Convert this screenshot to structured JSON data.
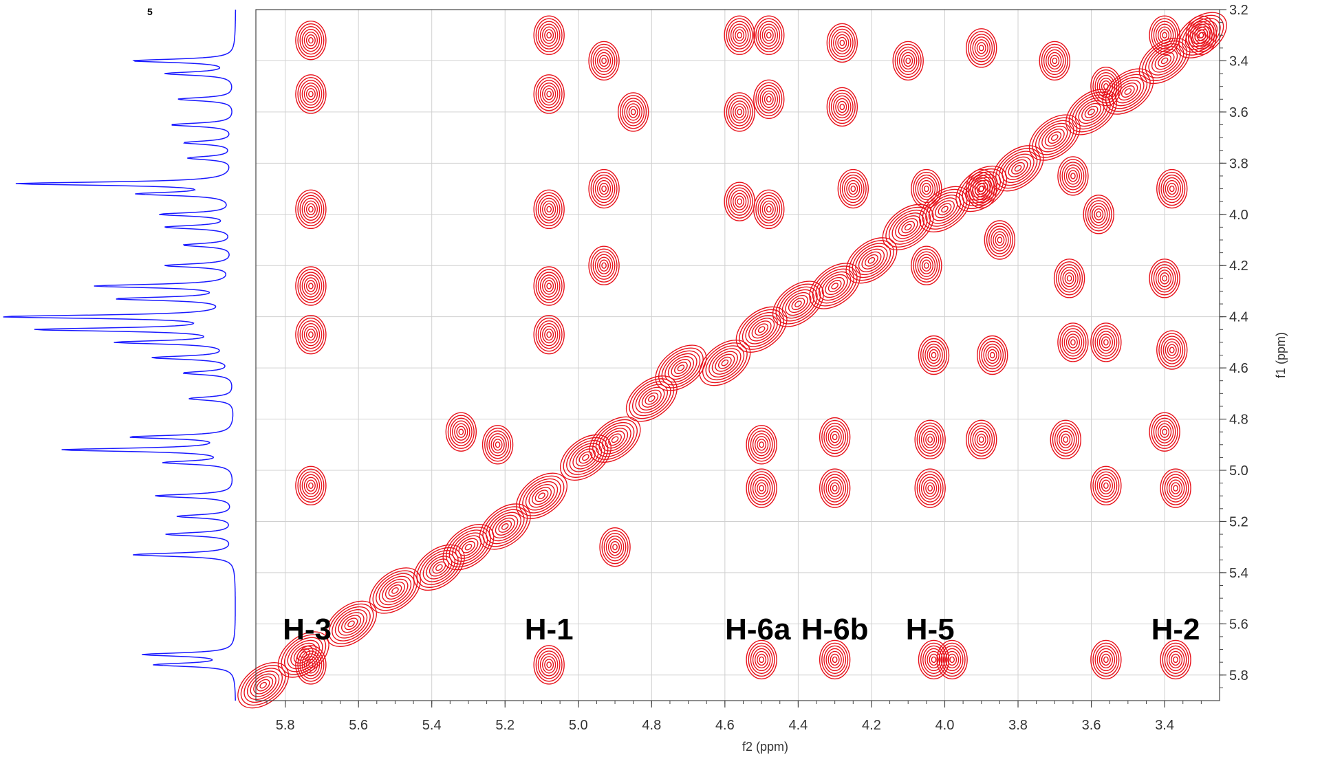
{
  "chart_data": {
    "type": "heatmap",
    "subtype": "2D NMR COSY contour plot with 1D projection",
    "panel_label": "5",
    "xlabel": "f2 (ppm)",
    "ylabel": "f1 (ppm)",
    "x_reversed": true,
    "y_reversed": true,
    "xlim": [
      5.88,
      3.25
    ],
    "ylim": [
      3.2,
      5.9
    ],
    "x_ticks": [
      "5.8",
      "5.6",
      "5.4",
      "5.2",
      "5.0",
      "4.8",
      "4.6",
      "4.4",
      "4.2",
      "4.0",
      "3.8",
      "3.6",
      "3.4"
    ],
    "y_ticks": [
      "3.2",
      "3.4",
      "3.6",
      "3.8",
      "4.0",
      "4.2",
      "4.4",
      "4.6",
      "4.8",
      "5.0",
      "5.2",
      "5.4",
      "5.6",
      "5.8"
    ],
    "grid": true,
    "colors": {
      "contour": "#e8121b",
      "projection": "#1a1aff",
      "grid": "#d0d0d0",
      "axis": "#444444"
    },
    "peak_labels": [
      {
        "text": "H-3",
        "ppm": 5.74
      },
      {
        "text": "H-1",
        "ppm": 5.08
      },
      {
        "text": "H-6a",
        "ppm": 4.51
      },
      {
        "text": "H-6b",
        "ppm": 4.3
      },
      {
        "text": "H-5",
        "ppm": 4.04
      },
      {
        "text": "H-2",
        "ppm": 3.37
      }
    ],
    "diagonal": [
      {
        "x": 5.86,
        "y": 5.84
      },
      {
        "x": 5.75,
        "y": 5.72
      },
      {
        "x": 5.62,
        "y": 5.6
      },
      {
        "x": 5.5,
        "y": 5.47
      },
      {
        "x": 5.38,
        "y": 5.38
      },
      {
        "x": 5.3,
        "y": 5.3
      },
      {
        "x": 5.2,
        "y": 5.22
      },
      {
        "x": 5.1,
        "y": 5.1
      },
      {
        "x": 4.98,
        "y": 4.95
      },
      {
        "x": 4.9,
        "y": 4.88
      },
      {
        "x": 4.8,
        "y": 4.72
      },
      {
        "x": 4.72,
        "y": 4.6
      },
      {
        "x": 4.6,
        "y": 4.58
      },
      {
        "x": 4.5,
        "y": 4.45
      },
      {
        "x": 4.4,
        "y": 4.35
      },
      {
        "x": 4.3,
        "y": 4.28
      },
      {
        "x": 4.2,
        "y": 4.18
      },
      {
        "x": 4.1,
        "y": 4.05
      },
      {
        "x": 4.0,
        "y": 3.98
      },
      {
        "x": 3.9,
        "y": 3.9
      },
      {
        "x": 3.8,
        "y": 3.82
      },
      {
        "x": 3.7,
        "y": 3.7
      },
      {
        "x": 3.6,
        "y": 3.6
      },
      {
        "x": 3.5,
        "y": 3.52
      },
      {
        "x": 3.4,
        "y": 3.4
      },
      {
        "x": 3.3,
        "y": 3.3
      }
    ],
    "cross_peaks": [
      {
        "x": 5.73,
        "y": 3.32
      },
      {
        "x": 5.73,
        "y": 3.53
      },
      {
        "x": 5.73,
        "y": 3.98
      },
      {
        "x": 5.73,
        "y": 4.28
      },
      {
        "x": 5.73,
        "y": 4.47
      },
      {
        "x": 5.73,
        "y": 5.06
      },
      {
        "x": 5.73,
        "y": 5.76
      },
      {
        "x": 5.08,
        "y": 3.3
      },
      {
        "x": 5.08,
        "y": 3.53
      },
      {
        "x": 5.08,
        "y": 3.98
      },
      {
        "x": 5.08,
        "y": 4.28
      },
      {
        "x": 5.08,
        "y": 4.47
      },
      {
        "x": 5.08,
        "y": 5.76
      },
      {
        "x": 4.93,
        "y": 3.4
      },
      {
        "x": 4.93,
        "y": 3.9
      },
      {
        "x": 4.93,
        "y": 4.2
      },
      {
        "x": 4.9,
        "y": 5.3
      },
      {
        "x": 4.85,
        "y": 3.6
      },
      {
        "x": 5.32,
        "y": 4.85
      },
      {
        "x": 5.22,
        "y": 4.9
      },
      {
        "x": 4.56,
        "y": 3.3
      },
      {
        "x": 4.56,
        "y": 3.6
      },
      {
        "x": 4.56,
        "y": 3.95
      },
      {
        "x": 4.48,
        "y": 3.3
      },
      {
        "x": 4.48,
        "y": 3.55
      },
      {
        "x": 4.48,
        "y": 3.98
      },
      {
        "x": 4.5,
        "y": 4.9
      },
      {
        "x": 4.5,
        "y": 5.07
      },
      {
        "x": 4.5,
        "y": 5.74
      },
      {
        "x": 4.28,
        "y": 3.33
      },
      {
        "x": 4.28,
        "y": 3.58
      },
      {
        "x": 4.25,
        "y": 3.9
      },
      {
        "x": 4.3,
        "y": 4.87
      },
      {
        "x": 4.3,
        "y": 5.07
      },
      {
        "x": 4.3,
        "y": 5.74
      },
      {
        "x": 4.1,
        "y": 3.4
      },
      {
        "x": 4.05,
        "y": 3.9
      },
      {
        "x": 4.05,
        "y": 4.2
      },
      {
        "x": 4.03,
        "y": 4.55
      },
      {
        "x": 4.04,
        "y": 4.88
      },
      {
        "x": 4.04,
        "y": 5.07
      },
      {
        "x": 4.03,
        "y": 5.74
      },
      {
        "x": 3.98,
        "y": 5.74
      },
      {
        "x": 3.9,
        "y": 3.35
      },
      {
        "x": 3.9,
        "y": 3.9
      },
      {
        "x": 3.87,
        "y": 4.55
      },
      {
        "x": 3.9,
        "y": 4.88
      },
      {
        "x": 3.85,
        "y": 4.1
      },
      {
        "x": 3.7,
        "y": 3.4
      },
      {
        "x": 3.65,
        "y": 3.85
      },
      {
        "x": 3.66,
        "y": 4.25
      },
      {
        "x": 3.67,
        "y": 4.88
      },
      {
        "x": 3.65,
        "y": 4.5
      },
      {
        "x": 3.56,
        "y": 3.5
      },
      {
        "x": 3.58,
        "y": 4.0
      },
      {
        "x": 3.56,
        "y": 4.5
      },
      {
        "x": 3.56,
        "y": 5.06
      },
      {
        "x": 3.56,
        "y": 5.74
      },
      {
        "x": 3.4,
        "y": 3.3
      },
      {
        "x": 3.38,
        "y": 3.9
      },
      {
        "x": 3.4,
        "y": 4.25
      },
      {
        "x": 3.38,
        "y": 4.53
      },
      {
        "x": 3.4,
        "y": 4.85
      },
      {
        "x": 3.37,
        "y": 5.07
      },
      {
        "x": 3.37,
        "y": 5.74
      },
      {
        "x": 3.3,
        "y": 3.3
      }
    ],
    "projection_peaks": [
      {
        "ppm": 3.4,
        "intensity": 0.45
      },
      {
        "ppm": 3.45,
        "intensity": 0.3
      },
      {
        "ppm": 3.55,
        "intensity": 0.25
      },
      {
        "ppm": 3.65,
        "intensity": 0.28
      },
      {
        "ppm": 3.72,
        "intensity": 0.22
      },
      {
        "ppm": 3.78,
        "intensity": 0.2
      },
      {
        "ppm": 3.88,
        "intensity": 0.95
      },
      {
        "ppm": 3.92,
        "intensity": 0.4
      },
      {
        "ppm": 4.0,
        "intensity": 0.32
      },
      {
        "ppm": 4.05,
        "intensity": 0.3
      },
      {
        "ppm": 4.12,
        "intensity": 0.22
      },
      {
        "ppm": 4.2,
        "intensity": 0.3
      },
      {
        "ppm": 4.28,
        "intensity": 0.6
      },
      {
        "ppm": 4.33,
        "intensity": 0.5
      },
      {
        "ppm": 4.4,
        "intensity": 1.0
      },
      {
        "ppm": 4.45,
        "intensity": 0.85
      },
      {
        "ppm": 4.5,
        "intensity": 0.5
      },
      {
        "ppm": 4.56,
        "intensity": 0.35
      },
      {
        "ppm": 4.62,
        "intensity": 0.22
      },
      {
        "ppm": 4.72,
        "intensity": 0.2
      },
      {
        "ppm": 4.87,
        "intensity": 0.45
      },
      {
        "ppm": 4.92,
        "intensity": 0.75
      },
      {
        "ppm": 4.97,
        "intensity": 0.3
      },
      {
        "ppm": 5.1,
        "intensity": 0.35
      },
      {
        "ppm": 5.18,
        "intensity": 0.25
      },
      {
        "ppm": 5.25,
        "intensity": 0.3
      },
      {
        "ppm": 5.33,
        "intensity": 0.45
      },
      {
        "ppm": 5.72,
        "intensity": 0.4
      },
      {
        "ppm": 5.76,
        "intensity": 0.35
      }
    ]
  }
}
